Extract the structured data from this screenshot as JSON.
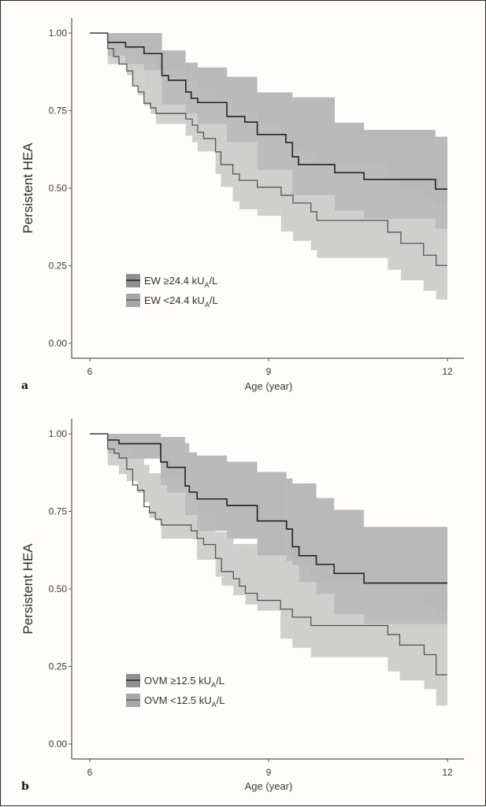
{
  "chart_data": [
    {
      "type": "line",
      "subtype": "kaplan-meier step with confidence bands",
      "panel_label": "a",
      "title": "",
      "xlabel": "Age (year)",
      "ylabel": "Persistent HEA",
      "xlim": [
        6,
        12
      ],
      "ylim": [
        0,
        1
      ],
      "xticks": [
        "6",
        "9",
        "12"
      ],
      "xtick_values": [
        6,
        9,
        12
      ],
      "yticks": [
        "0.00",
        "0.25",
        "0.50",
        "0.75",
        "1.00"
      ],
      "ytick_values": [
        0,
        0.25,
        0.5,
        0.75,
        1
      ],
      "grid": false,
      "legend_position": "bottom-left",
      "series": [
        {
          "name": "EW ≥24.4 kU",
          "name_sub": "A",
          "name_suffix": "/L",
          "line_color": "#222222",
          "band_color": "#8f8f8f",
          "x": [
            6.0,
            6.3,
            6.6,
            6.91,
            7.21,
            7.32,
            7.61,
            7.7,
            7.81,
            8.3,
            8.6,
            8.81,
            9.29,
            9.4,
            9.5,
            10.11,
            10.6,
            11.8
          ],
          "y": [
            1.0,
            0.97,
            0.955,
            0.934,
            0.863,
            0.848,
            0.81,
            0.79,
            0.776,
            0.731,
            0.713,
            0.673,
            0.647,
            0.601,
            0.576,
            0.55,
            0.528,
            0.497
          ],
          "band_upper": [
            1.0,
            1.0,
            1.0,
            1.0,
            0.944,
            0.944,
            0.905,
            0.905,
            0.889,
            0.859,
            0.859,
            0.809,
            0.809,
            0.793,
            0.793,
            0.711,
            0.688,
            0.666
          ],
          "band_lower": [
            1.0,
            0.927,
            0.9,
            0.88,
            0.77,
            0.77,
            0.74,
            0.74,
            0.707,
            0.648,
            0.648,
            0.559,
            0.559,
            0.478,
            0.478,
            0.428,
            0.402,
            0.37
          ]
        },
        {
          "name": "EW <24.4 kU",
          "name_sub": "A",
          "name_suffix": "/L",
          "line_color": "#555555",
          "band_color": "#bdbdbd",
          "x": [
            6.0,
            6.3,
            6.4,
            6.49,
            6.62,
            6.72,
            6.81,
            6.91,
            7.02,
            7.11,
            7.61,
            7.72,
            7.81,
            7.91,
            8.11,
            8.2,
            8.4,
            8.51,
            8.81,
            9.21,
            9.41,
            9.71,
            9.81,
            11.0,
            11.22,
            11.6,
            11.81
          ],
          "y": [
            1.0,
            0.95,
            0.924,
            0.9,
            0.878,
            0.83,
            0.81,
            0.774,
            0.759,
            0.741,
            0.723,
            0.703,
            0.68,
            0.66,
            0.617,
            0.576,
            0.546,
            0.525,
            0.503,
            0.477,
            0.452,
            0.424,
            0.396,
            0.358,
            0.322,
            0.284,
            0.251
          ],
          "band_upper": [
            1.0,
            0.97,
            0.97,
            0.97,
            0.95,
            0.95,
            0.95,
            0.93,
            0.93,
            0.88,
            0.85,
            0.85,
            0.82,
            0.82,
            0.79,
            0.79,
            0.75,
            0.75,
            0.71,
            0.66,
            0.62,
            0.62,
            0.58,
            0.53,
            0.5,
            0.47,
            0.45
          ],
          "band_lower": [
            1.0,
            0.9,
            0.9,
            0.9,
            0.864,
            0.83,
            0.8,
            0.766,
            0.74,
            0.707,
            0.669,
            0.648,
            0.618,
            0.618,
            0.546,
            0.504,
            0.457,
            0.432,
            0.411,
            0.36,
            0.33,
            0.3,
            0.275,
            0.237,
            0.203,
            0.169,
            0.141
          ]
        }
      ]
    },
    {
      "type": "line",
      "subtype": "kaplan-meier step with confidence bands",
      "panel_label": "b",
      "title": "",
      "xlabel": "Age (year)",
      "ylabel": "Persistent HEA",
      "xlim": [
        6,
        12
      ],
      "ylim": [
        0,
        1
      ],
      "xticks": [
        "6",
        "9",
        "12"
      ],
      "xtick_values": [
        6,
        9,
        12
      ],
      "yticks": [
        "0.00",
        "0.25",
        "0.50",
        "0.75",
        "1.00"
      ],
      "ytick_values": [
        0,
        0.25,
        0.5,
        0.75,
        1
      ],
      "grid": false,
      "legend_position": "bottom-left",
      "series": [
        {
          "name": "OVM ≥12.5 kU",
          "name_sub": "A",
          "name_suffix": "/L",
          "line_color": "#222222",
          "band_color": "#8f8f8f",
          "x": [
            6.0,
            6.3,
            6.49,
            7.19,
            7.3,
            7.6,
            7.67,
            7.8,
            8.3,
            8.81,
            9.3,
            9.4,
            9.51,
            9.8,
            10.1,
            10.6
          ],
          "y": [
            1.0,
            0.98,
            0.968,
            0.909,
            0.892,
            0.832,
            0.812,
            0.79,
            0.769,
            0.719,
            0.693,
            0.636,
            0.607,
            0.579,
            0.55,
            0.519
          ],
          "band_upper": [
            1.0,
            1.0,
            1.0,
            0.99,
            0.99,
            0.97,
            0.94,
            0.93,
            0.91,
            0.877,
            0.856,
            0.84,
            0.84,
            0.793,
            0.755,
            0.7
          ],
          "band_lower": [
            1.0,
            0.937,
            0.92,
            0.835,
            0.81,
            0.738,
            0.738,
            0.687,
            0.662,
            0.607,
            0.59,
            0.577,
            0.522,
            0.484,
            0.418,
            0.387
          ]
        },
        {
          "name": "OVM <12.5 kU",
          "name_sub": "A",
          "name_suffix": "/L",
          "line_color": "#555555",
          "band_color": "#bdbdbd",
          "x": [
            6.0,
            6.3,
            6.41,
            6.49,
            6.62,
            6.72,
            6.8,
            6.91,
            7.0,
            7.1,
            7.2,
            7.7,
            7.8,
            7.91,
            8.11,
            8.21,
            8.41,
            8.51,
            8.61,
            8.81,
            9.2,
            9.4,
            9.71,
            11.0,
            11.2,
            11.61,
            11.81
          ],
          "y": [
            1.0,
            0.951,
            0.937,
            0.922,
            0.886,
            0.835,
            0.818,
            0.765,
            0.746,
            0.725,
            0.706,
            0.687,
            0.663,
            0.643,
            0.598,
            0.556,
            0.533,
            0.509,
            0.486,
            0.463,
            0.435,
            0.409,
            0.382,
            0.353,
            0.319,
            0.288,
            0.223
          ],
          "band_upper": [
            1.0,
            0.98,
            0.98,
            0.96,
            0.96,
            0.924,
            0.924,
            0.9,
            0.873,
            0.873,
            0.856,
            0.832,
            0.75,
            0.75,
            0.683,
            0.683,
            0.645,
            0.645,
            0.645,
            0.607,
            0.607,
            0.58,
            0.522,
            0.52,
            0.49,
            0.45,
            0.42
          ],
          "band_lower": [
            1.0,
            0.898,
            0.898,
            0.87,
            0.848,
            0.848,
            0.81,
            0.78,
            0.729,
            0.72,
            0.662,
            0.66,
            0.594,
            0.594,
            0.539,
            0.51,
            0.48,
            0.48,
            0.45,
            0.43,
            0.34,
            0.31,
            0.28,
            0.234,
            0.205,
            0.177,
            0.124
          ]
        }
      ]
    }
  ]
}
